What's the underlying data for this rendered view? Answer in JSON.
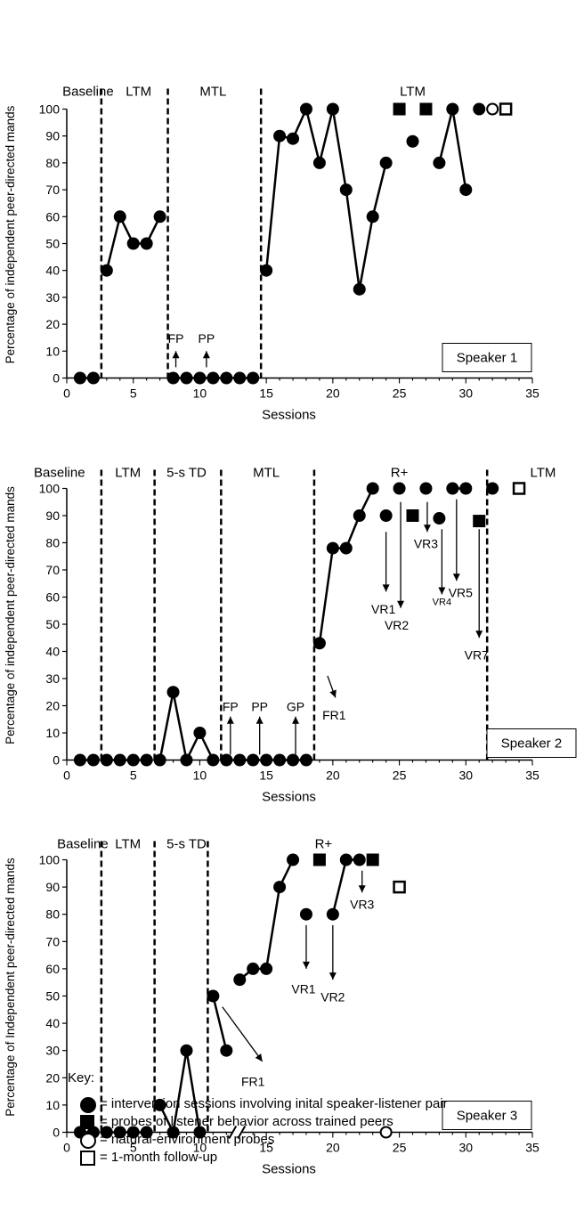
{
  "chart_data": [
    {
      "id": "speaker1",
      "type": "line",
      "ylabel": "Percentage of independent peer-directed mands",
      "xlabel": "Sessions",
      "xlim": [
        0,
        35
      ],
      "ylim": [
        0,
        100
      ],
      "xticks": [
        0,
        5,
        10,
        15,
        20,
        25,
        30,
        35
      ],
      "yticks": [
        0,
        10,
        20,
        30,
        40,
        50,
        60,
        70,
        80,
        90,
        100
      ],
      "phases": [
        {
          "label": "Baseline",
          "x": 1.6,
          "align": "middle"
        },
        {
          "label": "LTM",
          "x": 5.4,
          "align": "middle"
        },
        {
          "label": "MTL",
          "x": 11.0,
          "align": "middle"
        },
        {
          "label": "LTM",
          "x": 26.0,
          "align": "middle"
        }
      ],
      "phase_lines": [
        2.6,
        7.6,
        14.6
      ],
      "speaker_label": "Speaker 1",
      "series": [
        {
          "name": "intervention",
          "marker": "circle-filled",
          "segments": [
            [
              [
                1,
                0
              ],
              [
                2,
                0
              ]
            ],
            [
              [
                3,
                40
              ],
              [
                4,
                60
              ],
              [
                5,
                50
              ],
              [
                6,
                50
              ],
              [
                7,
                60
              ]
            ],
            [
              [
                8,
                0
              ],
              [
                9,
                0
              ],
              [
                10,
                0
              ],
              [
                11,
                0
              ],
              [
                12,
                0
              ],
              [
                13,
                0
              ],
              [
                14,
                0
              ]
            ],
            [
              [
                15,
                40
              ],
              [
                16,
                90
              ],
              [
                17,
                89
              ],
              [
                18,
                100
              ],
              [
                19,
                80
              ],
              [
                20,
                100
              ],
              [
                21,
                70
              ],
              [
                22,
                33
              ],
              [
                23,
                60
              ],
              [
                24,
                80
              ]
            ],
            [
              [
                26,
                88
              ]
            ],
            [
              [
                28,
                80
              ],
              [
                29,
                100
              ],
              [
                30,
                70
              ]
            ],
            [
              [
                31,
                100
              ]
            ]
          ]
        },
        {
          "name": "listener probes",
          "marker": "square-filled",
          "points": [
            [
              25,
              100
            ],
            [
              27,
              100
            ]
          ]
        },
        {
          "name": "natural-environment probes",
          "marker": "circle-open",
          "points": [
            [
              32,
              100
            ]
          ]
        },
        {
          "name": "1-month follow-up",
          "marker": "square-open",
          "points": [
            [
              33,
              100
            ]
          ]
        }
      ],
      "arrows": [
        {
          "label": "FP",
          "x": 8.2,
          "y_from": 4,
          "y_to": 10,
          "label_x": 8.2,
          "label_y": 13
        },
        {
          "label": "PP",
          "x": 10.5,
          "y_from": 4,
          "y_to": 10,
          "label_x": 10.5,
          "label_y": 13
        }
      ]
    },
    {
      "id": "speaker2",
      "type": "line",
      "ylabel": "Percentage of independent peer-directed mands",
      "xlabel": "Sessions",
      "xlim": [
        0,
        35
      ],
      "ylim": [
        0,
        100
      ],
      "xticks": [
        0,
        5,
        10,
        15,
        20,
        25,
        30,
        35
      ],
      "yticks": [
        0,
        10,
        20,
        30,
        40,
        50,
        60,
        70,
        80,
        90,
        100
      ],
      "phases": [
        {
          "label": "Baseline",
          "x": -1.8,
          "align": "start"
        },
        {
          "label": "LTM",
          "x": 4.6,
          "align": "middle"
        },
        {
          "label": "5-s TD",
          "x": 9.0,
          "align": "middle"
        },
        {
          "label": "MTL",
          "x": 15.0,
          "align": "middle"
        },
        {
          "label": "R+",
          "x": 25.0,
          "align": "middle"
        },
        {
          "label": "LTM",
          "x": 35.8,
          "align": "middle"
        }
      ],
      "phase_lines": [
        2.6,
        6.6,
        11.6,
        18.6,
        31.6
      ],
      "speaker_label": "Speaker 2",
      "series": [
        {
          "name": "intervention",
          "marker": "circle-filled",
          "segments": [
            [
              [
                1,
                0
              ],
              [
                2,
                0
              ]
            ],
            [
              [
                3,
                0
              ],
              [
                4,
                0
              ],
              [
                5,
                0
              ],
              [
                6,
                0
              ]
            ],
            [
              [
                7,
                0
              ],
              [
                8,
                25
              ],
              [
                9,
                0
              ],
              [
                10,
                10
              ],
              [
                11,
                0
              ]
            ],
            [
              [
                12,
                0
              ],
              [
                13,
                0
              ],
              [
                14,
                0
              ],
              [
                15,
                0
              ],
              [
                16,
                0
              ],
              [
                17,
                0
              ],
              [
                18,
                0
              ]
            ],
            [
              [
                19,
                43
              ],
              [
                20,
                78
              ],
              [
                21,
                78
              ],
              [
                22,
                90
              ],
              [
                23,
                100
              ]
            ],
            [
              [
                24,
                90
              ]
            ],
            [
              [
                25,
                100
              ]
            ],
            [
              [
                27,
                100
              ]
            ],
            [
              [
                28,
                89
              ]
            ],
            [
              [
                29,
                100
              ],
              [
                30,
                100
              ]
            ],
            [
              [
                32,
                100
              ]
            ]
          ]
        },
        {
          "name": "listener probes",
          "marker": "square-filled",
          "points": [
            [
              26,
              90
            ],
            [
              31,
              88
            ]
          ]
        },
        {
          "name": "1-month follow-up",
          "marker": "square-open",
          "points": [
            [
              34,
              100
            ]
          ]
        }
      ],
      "arrows": [
        {
          "label": "FP",
          "x": 12.3,
          "y_from": 2,
          "y_to": 16,
          "label_x": 12.3,
          "label_y": 18
        },
        {
          "label": "PP",
          "x": 14.5,
          "y_from": 2,
          "y_to": 16,
          "label_x": 14.5,
          "label_y": 18
        },
        {
          "label": "GP",
          "x": 17.2,
          "y_from": 2,
          "y_to": 16,
          "label_x": 17.2,
          "label_y": 18
        },
        {
          "label": "FR1",
          "x": 19.6,
          "y_from": 31,
          "y_to": 23,
          "x_to": 20.2,
          "label_x": 20.1,
          "label_y": 15
        },
        {
          "label": "VR1",
          "x": 24.0,
          "y_from": 84,
          "y_to": 62,
          "label_x": 23.8,
          "label_y": 54
        },
        {
          "label": "VR2",
          "x": 25.1,
          "y_from": 95,
          "y_to": 56,
          "label_x": 24.8,
          "label_y": 48
        },
        {
          "label": "VR3",
          "x": 27.1,
          "y_from": 95,
          "y_to": 84,
          "label_x": 27.0,
          "label_y": 78,
          "small": false
        },
        {
          "label": "VR4",
          "x": 28.2,
          "y_from": 85,
          "y_to": 61,
          "label_x": 28.2,
          "label_y": 57,
          "small": true
        },
        {
          "label": "VR5",
          "x": 29.3,
          "y_from": 96,
          "y_to": 66,
          "label_x": 29.6,
          "label_y": 60
        },
        {
          "label": "VR7",
          "x": 31.0,
          "y_from": 85,
          "y_to": 45,
          "label_x": 30.8,
          "label_y": 37
        }
      ]
    },
    {
      "id": "speaker3",
      "type": "line",
      "ylabel": "Percentage of Independent peer-directed mands",
      "xlabel": "Sessions",
      "xlim": [
        0,
        35
      ],
      "ylim": [
        0,
        100
      ],
      "xticks": [
        0,
        5,
        10,
        15,
        20,
        25,
        30,
        35
      ],
      "yticks": [
        0,
        10,
        20,
        30,
        40,
        50,
        60,
        70,
        80,
        90,
        100
      ],
      "phases": [
        {
          "label": "Baseline",
          "x": 1.2,
          "align": "middle"
        },
        {
          "label": "LTM",
          "x": 4.6,
          "align": "middle"
        },
        {
          "label": "5-s TD",
          "x": 9.0,
          "align": "middle"
        },
        {
          "label": "R+",
          "x": 19.3,
          "align": "middle"
        }
      ],
      "phase_lines": [
        2.6,
        6.6,
        10.6
      ],
      "speaker_label": "Speaker 3",
      "axis_break_x": 12.8,
      "series": [
        {
          "name": "intervention",
          "marker": "circle-filled",
          "segments": [
            [
              [
                1,
                0
              ],
              [
                2,
                0
              ]
            ],
            [
              [
                3,
                0
              ],
              [
                4,
                0
              ],
              [
                5,
                0
              ],
              [
                6,
                0
              ]
            ],
            [
              [
                7,
                10
              ],
              [
                8,
                0
              ],
              [
                9,
                30
              ],
              [
                10,
                0
              ]
            ],
            [
              [
                11,
                50
              ],
              [
                12,
                30
              ]
            ],
            [
              [
                13,
                56
              ],
              [
                14,
                60
              ],
              [
                15,
                60
              ],
              [
                16,
                90
              ],
              [
                17,
                100
              ]
            ],
            [
              [
                18,
                80
              ]
            ],
            [
              [
                20,
                80
              ],
              [
                21,
                100
              ],
              [
                22,
                100
              ]
            ]
          ]
        },
        {
          "name": "listener probes",
          "marker": "square-filled",
          "points": [
            [
              19,
              100
            ],
            [
              23,
              100
            ]
          ]
        },
        {
          "name": "natural-environment probes",
          "marker": "circle-open",
          "points": [
            [
              24,
              0
            ]
          ]
        },
        {
          "name": "1-month follow-up",
          "marker": "square-open",
          "points": [
            [
              25,
              90
            ]
          ]
        }
      ],
      "arrows": [
        {
          "label": "FR1",
          "x": 11.7,
          "y_from": 46,
          "y_to": 26,
          "x_to": 14.7,
          "label_x": 14.0,
          "label_y": 17
        },
        {
          "label": "VR1",
          "x": 18.0,
          "y_from": 76,
          "y_to": 60,
          "label_x": 17.8,
          "label_y": 51
        },
        {
          "label": "VR2",
          "x": 20.0,
          "y_from": 76,
          "y_to": 56,
          "label_x": 20.0,
          "label_y": 48
        },
        {
          "label": "VR3",
          "x": 22.2,
          "y_from": 96,
          "y_to": 88,
          "label_x": 22.2,
          "label_y": 82
        }
      ]
    }
  ],
  "key": {
    "title": "Key:",
    "items": [
      {
        "marker": "circle-filled",
        "label": "= intervention sessions involving inital speaker-listener pair"
      },
      {
        "marker": "square-filled",
        "label": "= probes of listener behavior across trained peers"
      },
      {
        "marker": "circle-open",
        "label": "= natural-environment probes"
      },
      {
        "marker": "square-open",
        "label": "= 1-month follow-up"
      }
    ]
  }
}
